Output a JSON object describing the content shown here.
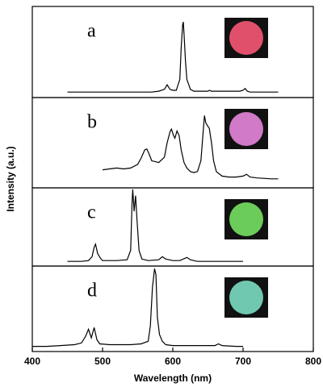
{
  "chart_data": [
    {
      "type": "line",
      "label": "a",
      "inset_color": "#e0506a",
      "color": "#000000",
      "xlim": [
        400,
        800
      ],
      "ylim": [
        0,
        100
      ],
      "ylabel": "Intensity (a.u.)",
      "x": [
        450,
        500,
        550,
        570,
        580,
        588,
        592,
        596,
        600,
        605,
        610,
        612,
        614,
        615,
        616,
        618,
        620,
        625,
        630,
        650,
        652,
        655,
        658,
        680,
        695,
        700,
        703,
        706,
        710,
        730,
        750
      ],
      "values": [
        6,
        6,
        6,
        6,
        7,
        9,
        14,
        9,
        8,
        8,
        20,
        55,
        80,
        83,
        70,
        40,
        20,
        9,
        7,
        7,
        8,
        7,
        7,
        7,
        7,
        8,
        10,
        7,
        6,
        6,
        6
      ]
    },
    {
      "type": "line",
      "label": "b",
      "inset_color": "#d07ac8",
      "color": "#000000",
      "xlim": [
        400,
        800
      ],
      "ylim": [
        0,
        100
      ],
      "x": [
        500,
        510,
        520,
        530,
        540,
        550,
        555,
        560,
        563,
        566,
        570,
        580,
        588,
        592,
        596,
        598,
        601,
        603,
        606,
        609,
        612,
        616,
        620,
        625,
        630,
        635,
        640,
        643,
        645,
        647,
        650,
        652,
        655,
        658,
        662,
        670,
        680,
        690,
        700,
        705,
        710,
        720,
        740,
        750
      ],
      "values": [
        20,
        21,
        22,
        21,
        22,
        26,
        33,
        42,
        43,
        38,
        30,
        28,
        34,
        50,
        62,
        65,
        58,
        55,
        63,
        58,
        42,
        28,
        22,
        18,
        17,
        18,
        30,
        60,
        80,
        72,
        68,
        66,
        50,
        30,
        18,
        13,
        12,
        12,
        13,
        15,
        12,
        11,
        10,
        10
      ]
    },
    {
      "type": "line",
      "label": "c",
      "inset_color": "#6ccc5a",
      "color": "#000000",
      "xlim": [
        400,
        800
      ],
      "ylim": [
        0,
        100
      ],
      "x": [
        450,
        470,
        480,
        485,
        488,
        490,
        493,
        497,
        500,
        520,
        535,
        540,
        542,
        543,
        545,
        547,
        549,
        552,
        556,
        565,
        580,
        585,
        590,
        600,
        610,
        620,
        625,
        635,
        660,
        680,
        700
      ],
      "values": [
        6,
        6,
        7,
        12,
        24,
        28,
        16,
        10,
        7,
        7,
        8,
        20,
        80,
        98,
        70,
        90,
        60,
        20,
        9,
        7,
        8,
        12,
        9,
        7,
        7,
        11,
        8,
        6,
        6,
        6,
        6
      ]
    },
    {
      "type": "line",
      "label": "d",
      "inset_color": "#70c8b0",
      "color": "#000000",
      "xlim": [
        400,
        800
      ],
      "ylim": [
        0,
        100
      ],
      "xticks": [
        400,
        500,
        600,
        700,
        800
      ],
      "xlabel": "Wavelength (nm)",
      "x": [
        400,
        420,
        440,
        460,
        470,
        476,
        480,
        484,
        488,
        492,
        496,
        510,
        540,
        555,
        565,
        568,
        571,
        574,
        576,
        578,
        581,
        585,
        590,
        600,
        620,
        640,
        660,
        665,
        670,
        690,
        700
      ],
      "values": [
        6,
        6,
        7,
        8,
        10,
        18,
        26,
        16,
        28,
        14,
        9,
        8,
        8,
        9,
        12,
        30,
        75,
        97,
        90,
        40,
        20,
        12,
        8,
        7,
        7,
        7,
        7,
        9,
        7,
        6,
        6
      ]
    }
  ]
}
